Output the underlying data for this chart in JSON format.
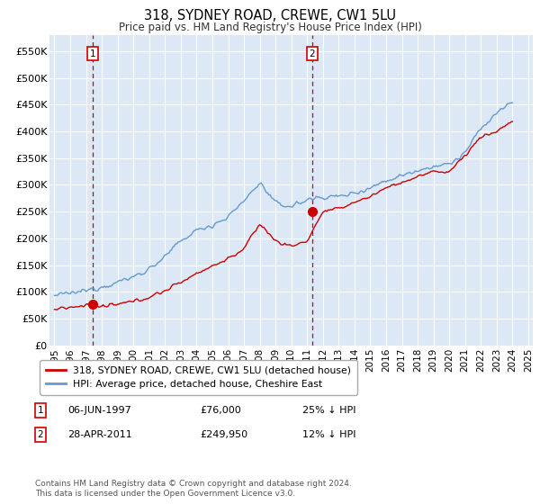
{
  "title": "318, SYDNEY ROAD, CREWE, CW1 5LU",
  "subtitle": "Price paid vs. HM Land Registry's House Price Index (HPI)",
  "legend_label_red": "318, SYDNEY ROAD, CREWE, CW1 5LU (detached house)",
  "legend_label_blue": "HPI: Average price, detached house, Cheshire East",
  "sale1_date": "06-JUN-1997",
  "sale1_price": "£76,000",
  "sale1_hpi": "25% ↓ HPI",
  "sale2_date": "28-APR-2011",
  "sale2_price": "£249,950",
  "sale2_hpi": "12% ↓ HPI",
  "footer": "Contains HM Land Registry data © Crown copyright and database right 2024.\nThis data is licensed under the Open Government Licence v3.0.",
  "xlim_left": 1994.7,
  "xlim_right": 2025.3,
  "ylim_bottom": 0,
  "ylim_top": 580000,
  "yticks": [
    0,
    50000,
    100000,
    150000,
    200000,
    250000,
    300000,
    350000,
    400000,
    450000,
    500000,
    550000
  ],
  "ytick_labels": [
    "£0",
    "£50K",
    "£100K",
    "£150K",
    "£200K",
    "£250K",
    "£300K",
    "£350K",
    "£400K",
    "£450K",
    "£500K",
    "£550K"
  ],
  "xticks": [
    1995,
    1996,
    1997,
    1998,
    1999,
    2000,
    2001,
    2002,
    2003,
    2004,
    2005,
    2006,
    2007,
    2008,
    2009,
    2010,
    2011,
    2012,
    2013,
    2014,
    2015,
    2016,
    2017,
    2018,
    2019,
    2020,
    2021,
    2022,
    2023,
    2024,
    2025
  ],
  "red_color": "#cc0000",
  "blue_color": "#6699cc",
  "bg_color": "#dce8f5",
  "grid_color": "#ffffff",
  "vline_color": "#cc0000",
  "marker_sale1_x": 1997.44,
  "marker_sale1_y": 76000,
  "marker_sale2_x": 2011.32,
  "marker_sale2_y": 249950
}
